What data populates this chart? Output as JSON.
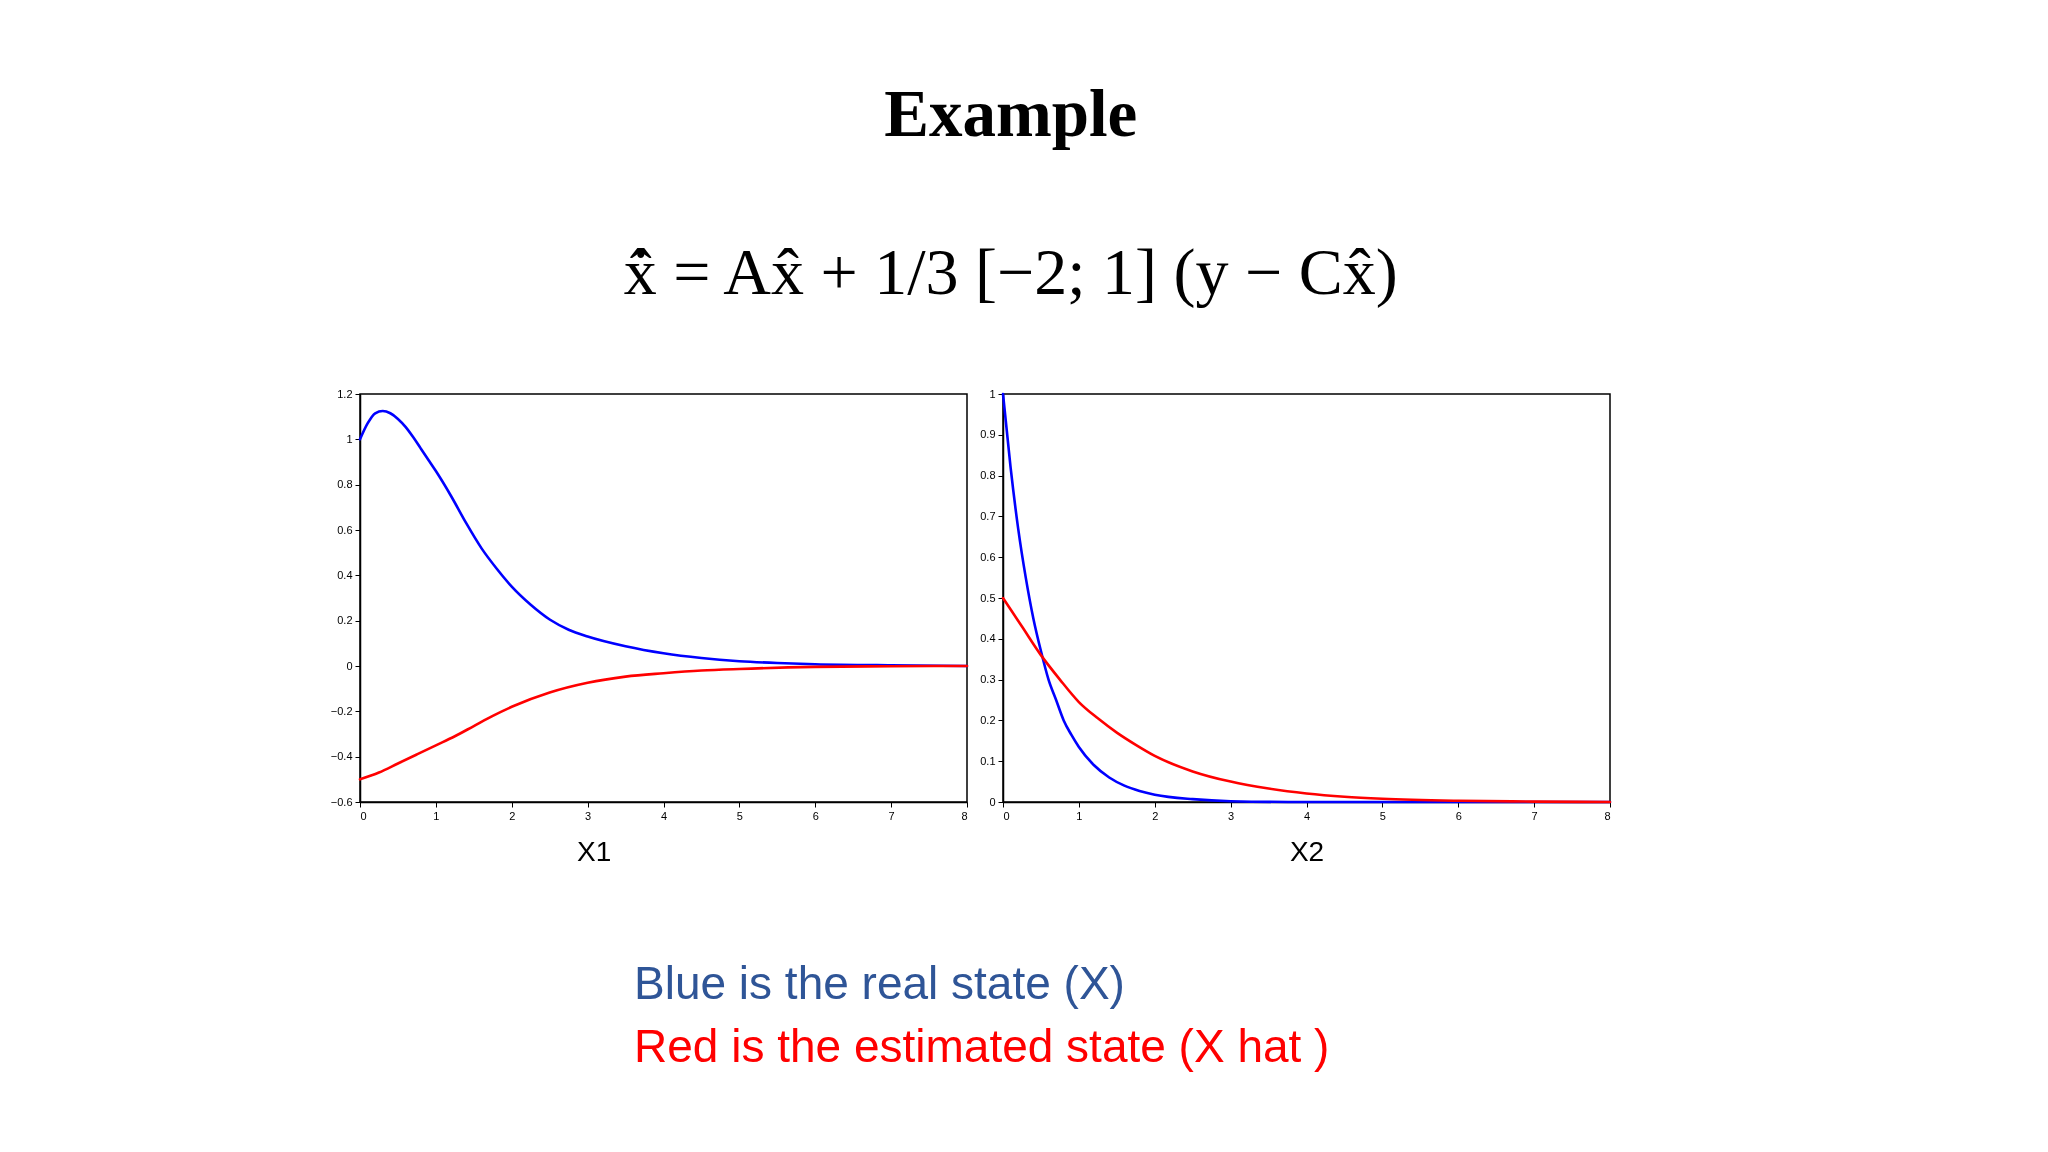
{
  "chart_data": [
    {
      "type": "line",
      "title": "Example",
      "subtitle": "x̂̇ = Ax̂ + 1/3 [−2; 1] (y − Cx̂)",
      "xlabel": "X1",
      "series": [
        {
          "color": "#0000ff",
          "x": [
            0,
            0.1,
            0.2,
            0.3,
            0.4,
            0.5,
            0.6,
            0.7,
            0.8,
            0.9,
            1.0,
            1.2,
            1.4,
            1.6,
            1.8,
            2.0,
            2.25,
            2.5,
            2.75,
            3.0,
            3.5,
            4.0,
            4.5,
            5.0,
            5.5,
            6.0,
            7.0,
            8.0
          ],
          "values": [
            1.0,
            1.07,
            1.115,
            1.125,
            1.115,
            1.09,
            1.055,
            1.01,
            0.96,
            0.91,
            0.86,
            0.75,
            0.63,
            0.52,
            0.43,
            0.35,
            0.27,
            0.205,
            0.16,
            0.13,
            0.087,
            0.056,
            0.035,
            0.021,
            0.013,
            0.008,
            0.003,
            0.0
          ]
        },
        {
          "color": "#ff0000",
          "x": [
            0,
            0.25,
            0.5,
            0.75,
            1.0,
            1.25,
            1.5,
            1.75,
            2.0,
            2.5,
            3.0,
            3.5,
            4.0,
            4.5,
            5.0,
            6.0,
            7.0,
            8.0
          ],
          "values": [
            -0.5,
            -0.47,
            -0.43,
            -0.39,
            -0.35,
            -0.31,
            -0.265,
            -0.22,
            -0.18,
            -0.117,
            -0.074,
            -0.047,
            -0.032,
            -0.02,
            -0.013,
            -0.004,
            -0.001,
            0.0
          ]
        }
      ],
      "xlim": [
        0,
        8
      ],
      "xticks": [
        0,
        1,
        2,
        3,
        4,
        5,
        6,
        7,
        8
      ],
      "ylim": [
        -0.6,
        1.2
      ],
      "yticks": [
        -0.6,
        -0.4,
        -0.2,
        0,
        0.2,
        0.4,
        0.6,
        0.8,
        1,
        1.2
      ],
      "grid": false,
      "legend": false,
      "annotations": [
        "Blue is the real state (X)",
        "Red is the estimated state (X hat )"
      ]
    },
    {
      "type": "line",
      "xlabel": "X2",
      "series": [
        {
          "color": "#0000ff",
          "x": [
            0,
            0.1,
            0.2,
            0.3,
            0.4,
            0.5,
            0.6,
            0.7,
            0.8,
            0.9,
            1.0,
            1.2,
            1.4,
            1.6,
            1.8,
            2.0,
            2.5,
            3.0,
            4.0,
            8.0
          ],
          "values": [
            1.0,
            0.82,
            0.67,
            0.55,
            0.45,
            0.37,
            0.3,
            0.25,
            0.2,
            0.165,
            0.135,
            0.09,
            0.06,
            0.04,
            0.027,
            0.018,
            0.007,
            0.002,
            0.0,
            0.0
          ]
        },
        {
          "color": "#ff0000",
          "x": [
            0,
            0.25,
            0.5,
            0.75,
            1.0,
            1.25,
            1.5,
            1.75,
            2.0,
            2.5,
            3.0,
            3.5,
            4.0,
            4.5,
            5.0,
            6.0,
            7.0,
            8.0
          ],
          "values": [
            0.5,
            0.43,
            0.36,
            0.3,
            0.245,
            0.205,
            0.17,
            0.14,
            0.113,
            0.075,
            0.05,
            0.033,
            0.021,
            0.013,
            0.008,
            0.003,
            0.001,
            0.0
          ]
        }
      ],
      "xlim": [
        0,
        8
      ],
      "xticks": [
        0,
        1,
        2,
        3,
        4,
        5,
        6,
        7,
        8
      ],
      "ylim": [
        0,
        1
      ],
      "yticks": [
        0,
        0.1,
        0.2,
        0.3,
        0.4,
        0.5,
        0.6,
        0.7,
        0.8,
        0.9,
        1
      ],
      "grid": false,
      "legend": false
    }
  ]
}
